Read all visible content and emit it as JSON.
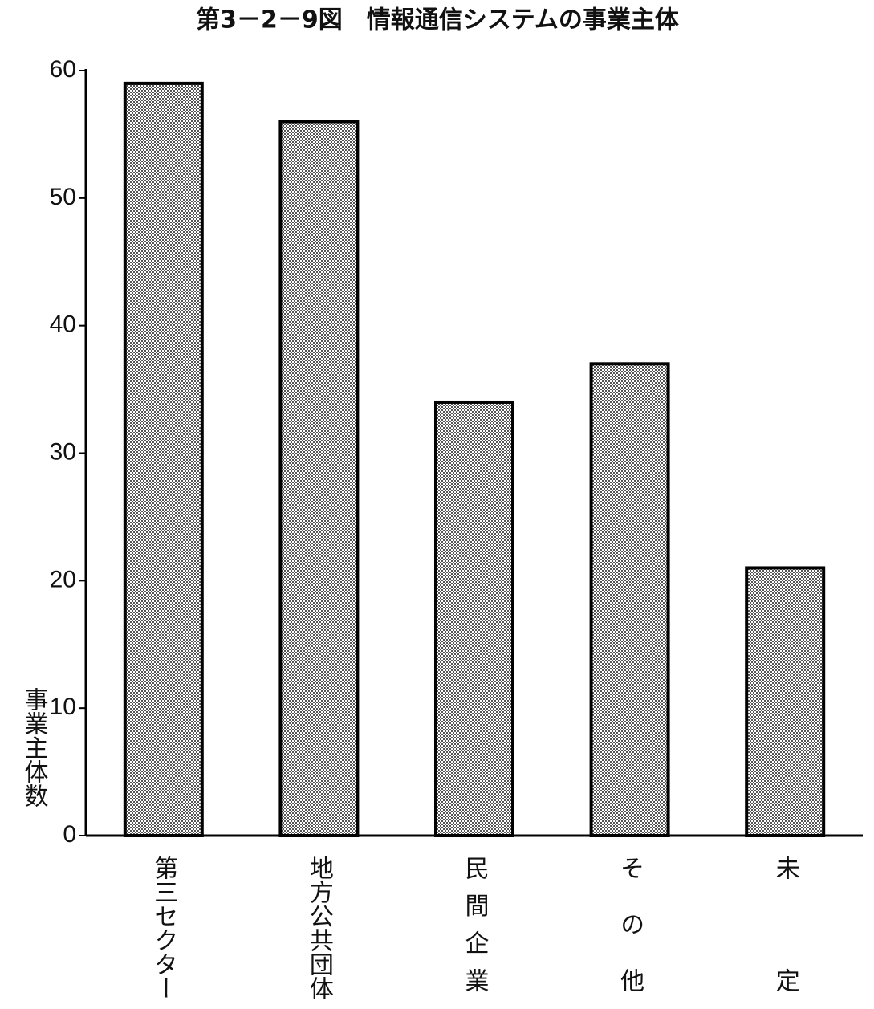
{
  "chart_data": {
    "type": "bar",
    "title": "第3－2－9図　情報通信システムの事業主体",
    "y_label": "事業主体数",
    "categories": [
      "第三セクター",
      "地方公共団体",
      "民間企業",
      "その他",
      "未定"
    ],
    "values": [
      59,
      56,
      34,
      37,
      21
    ],
    "color": "#c8c8c8",
    "ylim": [
      0,
      60
    ],
    "yticks": [
      0,
      10,
      20,
      30,
      40,
      50,
      60
    ],
    "grid": false
  }
}
